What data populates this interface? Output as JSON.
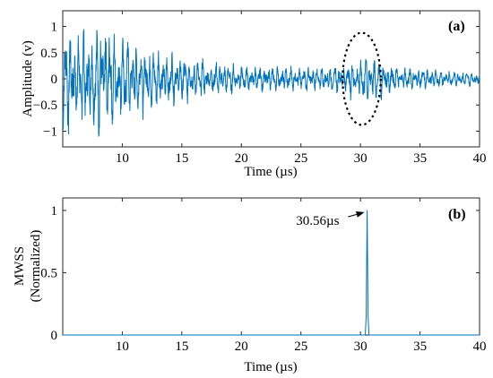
{
  "chart_data": [
    {
      "panel": "(a)",
      "type": "line",
      "xlabel": "Time (µs)",
      "ylabel": "Amplitude (v)",
      "xlim": [
        5,
        40
      ],
      "ylim": [
        -1.3,
        1.3
      ],
      "xticks": [
        10,
        15,
        20,
        25,
        30,
        35,
        40
      ],
      "xtick_labels": [
        "10",
        "15",
        "20",
        "25",
        "30",
        "35",
        "40"
      ],
      "yticks": [
        -1,
        -0.5,
        0,
        0.5,
        1
      ],
      "ytick_labels": [
        "−1",
        "−0.5",
        "0",
        "0.5",
        "1"
      ],
      "grid": false,
      "color": "#0072BD",
      "envelope": {
        "x": [
          5,
          6,
          7,
          8,
          8.6,
          9,
          10,
          11,
          12,
          13,
          15,
          17,
          20,
          25,
          28,
          29.5,
          30.5,
          31.5,
          33,
          35,
          40
        ],
        "amplitude": [
          0.8,
          0.75,
          0.7,
          0.8,
          0.9,
          0.7,
          0.65,
          0.55,
          0.5,
          0.42,
          0.35,
          0.28,
          0.2,
          0.18,
          0.2,
          0.3,
          0.42,
          0.3,
          0.2,
          0.15,
          0.1
        ]
      },
      "highlight": {
        "shape": "dashed-ellipse",
        "x_center": 30.1,
        "y_center": 0,
        "x_halfwidth": 1.6,
        "y_halfwidth": 0.88
      }
    },
    {
      "panel": "(b)",
      "type": "line",
      "xlabel": "Time (µs)",
      "ylabel_lines": [
        "MWSS",
        "(Normalized)"
      ],
      "xlim": [
        5,
        40
      ],
      "ylim": [
        0,
        1.1
      ],
      "xticks": [
        10,
        15,
        20,
        25,
        30,
        35,
        40
      ],
      "xtick_labels": [
        "10",
        "15",
        "20",
        "25",
        "30",
        "35",
        "40"
      ],
      "yticks": [
        0,
        0.5,
        1
      ],
      "ytick_labels": [
        "0",
        "0.5",
        "1"
      ],
      "grid": false,
      "color": "#0072BD",
      "series": [
        {
          "x": [
            5,
            30.4,
            30.48,
            30.56,
            30.64,
            30.72,
            40
          ],
          "y": [
            0,
            0,
            0.15,
            1,
            0.15,
            0,
            0
          ]
        }
      ],
      "annotation": {
        "text": "30.56µs",
        "x": 30.56,
        "y": 1.0,
        "label_x": 26.4,
        "label_y": 0.92
      }
    }
  ]
}
